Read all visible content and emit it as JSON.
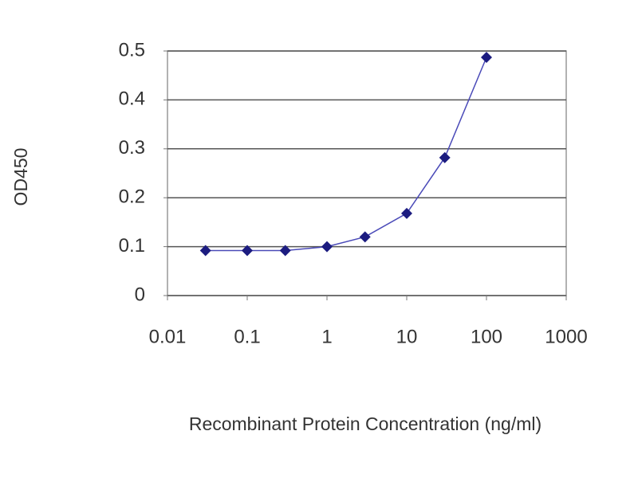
{
  "chart_data": {
    "type": "line",
    "marker": "diamond",
    "xscale": "log",
    "x": [
      0.03,
      0.1,
      0.3,
      1,
      3,
      10,
      30,
      100
    ],
    "series": [
      {
        "color": "#1c1c80",
        "values": [
          0.092,
          0.092,
          0.092,
          0.1,
          0.12,
          0.168,
          0.282,
          0.487
        ]
      }
    ],
    "xlim": [
      0.01,
      1000
    ],
    "xticks": [
      0.01,
      0.1,
      1,
      10,
      100,
      1000
    ],
    "ylim": [
      0,
      0.5
    ],
    "yticks": [
      0,
      0.1,
      0.2,
      0.3,
      0.4,
      0.5
    ],
    "grid": true,
    "xlabel": "Recombinant Protein Concentration (ng/ml)",
    "ylabel": "OD450"
  }
}
